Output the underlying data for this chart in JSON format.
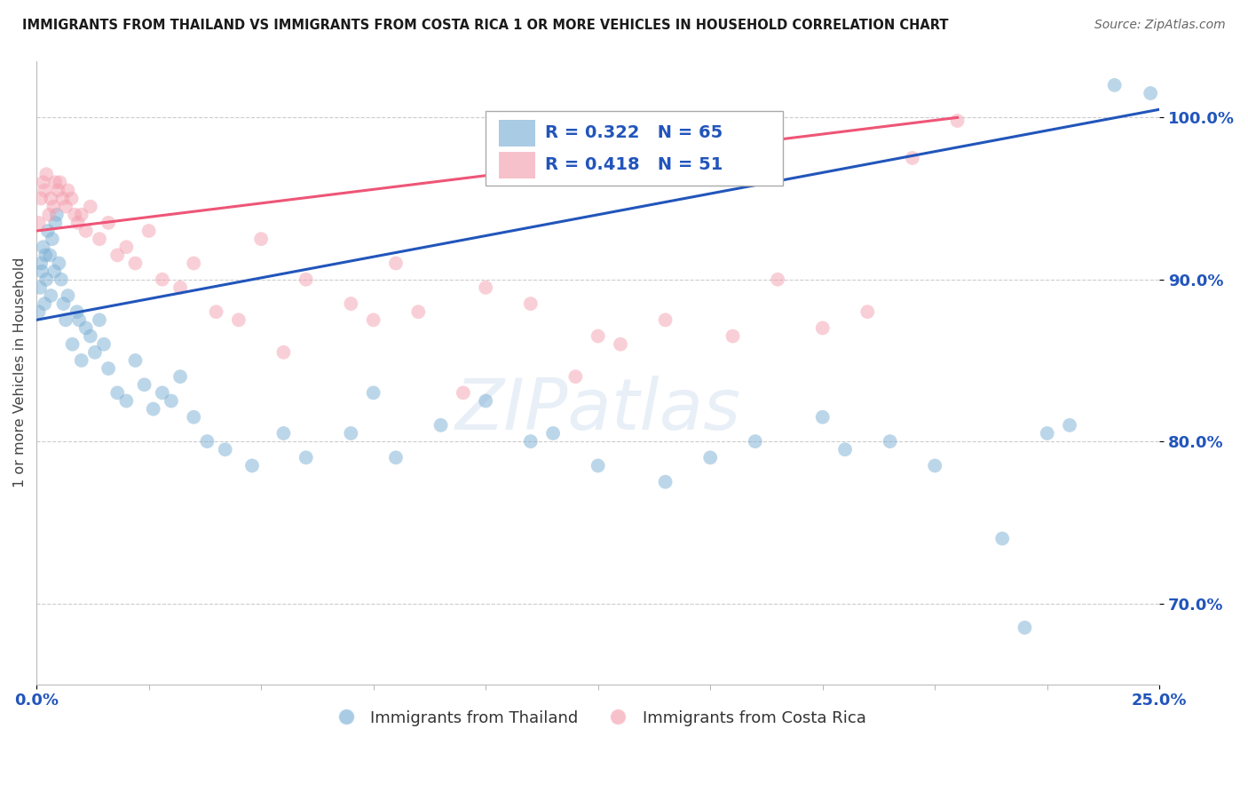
{
  "title": "IMMIGRANTS FROM THAILAND VS IMMIGRANTS FROM COSTA RICA 1 OR MORE VEHICLES IN HOUSEHOLD CORRELATION CHART",
  "source": "Source: ZipAtlas.com",
  "ylabel": "1 or more Vehicles in Household",
  "xlim": [
    0.0,
    25.0
  ],
  "ylim": [
    65.0,
    103.5
  ],
  "yticks": [
    70.0,
    80.0,
    90.0,
    100.0
  ],
  "ytick_labels": [
    "70.0%",
    "80.0%",
    "90.0%",
    "100.0%"
  ],
  "xtick_labels": [
    "0.0%",
    "25.0%"
  ],
  "thailand_color": "#7BAFD4",
  "costarica_color": "#F4A0B0",
  "thailand_line_color": "#2255BB",
  "costarica_line_color": "#EE5577",
  "thailand_R": 0.322,
  "thailand_N": 65,
  "costarica_R": 0.418,
  "costarica_N": 51,
  "background_color": "#FFFFFF",
  "grid_color": "#CCCCCC",
  "legend_label_thailand": "Immigrants from Thailand",
  "legend_label_costarica": "Immigrants from Costa Rica",
  "thailand_x": [
    0.05,
    0.08,
    0.1,
    0.12,
    0.15,
    0.18,
    0.2,
    0.22,
    0.25,
    0.3,
    0.32,
    0.35,
    0.4,
    0.42,
    0.45,
    0.5,
    0.55,
    0.6,
    0.65,
    0.7,
    0.8,
    0.9,
    0.95,
    1.0,
    1.1,
    1.2,
    1.3,
    1.4,
    1.5,
    1.6,
    1.8,
    2.0,
    2.2,
    2.4,
    2.6,
    2.8,
    3.0,
    3.2,
    3.5,
    3.8,
    4.2,
    4.8,
    5.5,
    6.0,
    7.0,
    7.5,
    8.0,
    9.0,
    10.0,
    11.0,
    11.5,
    12.5,
    14.0,
    15.0,
    16.0,
    17.5,
    18.0,
    19.0,
    20.0,
    21.5,
    22.0,
    22.5,
    23.0,
    24.0,
    24.8
  ],
  "thailand_y": [
    88.0,
    89.5,
    91.0,
    90.5,
    92.0,
    88.5,
    91.5,
    90.0,
    93.0,
    91.5,
    89.0,
    92.5,
    90.5,
    93.5,
    94.0,
    91.0,
    90.0,
    88.5,
    87.5,
    89.0,
    86.0,
    88.0,
    87.5,
    85.0,
    87.0,
    86.5,
    85.5,
    87.5,
    86.0,
    84.5,
    83.0,
    82.5,
    85.0,
    83.5,
    82.0,
    83.0,
    82.5,
    84.0,
    81.5,
    80.0,
    79.5,
    78.5,
    80.5,
    79.0,
    80.5,
    83.0,
    79.0,
    81.0,
    82.5,
    80.0,
    80.5,
    78.5,
    77.5,
    79.0,
    80.0,
    81.5,
    79.5,
    80.0,
    78.5,
    74.0,
    68.5,
    80.5,
    81.0,
    102.0,
    101.5
  ],
  "costarica_x": [
    0.05,
    0.1,
    0.15,
    0.18,
    0.22,
    0.28,
    0.32,
    0.38,
    0.42,
    0.48,
    0.52,
    0.58,
    0.65,
    0.7,
    0.78,
    0.85,
    0.92,
    1.0,
    1.1,
    1.2,
    1.4,
    1.6,
    1.8,
    2.0,
    2.2,
    2.5,
    2.8,
    3.2,
    3.5,
    4.0,
    4.5,
    5.0,
    5.5,
    6.0,
    7.0,
    7.5,
    8.0,
    8.5,
    9.5,
    10.0,
    11.0,
    12.0,
    12.5,
    13.0,
    14.0,
    15.5,
    16.5,
    17.5,
    18.5,
    19.5,
    20.5
  ],
  "costarica_y": [
    93.5,
    95.0,
    96.0,
    95.5,
    96.5,
    94.0,
    95.0,
    94.5,
    96.0,
    95.5,
    96.0,
    95.0,
    94.5,
    95.5,
    95.0,
    94.0,
    93.5,
    94.0,
    93.0,
    94.5,
    92.5,
    93.5,
    91.5,
    92.0,
    91.0,
    93.0,
    90.0,
    89.5,
    91.0,
    88.0,
    87.5,
    92.5,
    85.5,
    90.0,
    88.5,
    87.5,
    91.0,
    88.0,
    83.0,
    89.5,
    88.5,
    84.0,
    86.5,
    86.0,
    87.5,
    86.5,
    90.0,
    87.0,
    88.0,
    97.5,
    99.8
  ]
}
